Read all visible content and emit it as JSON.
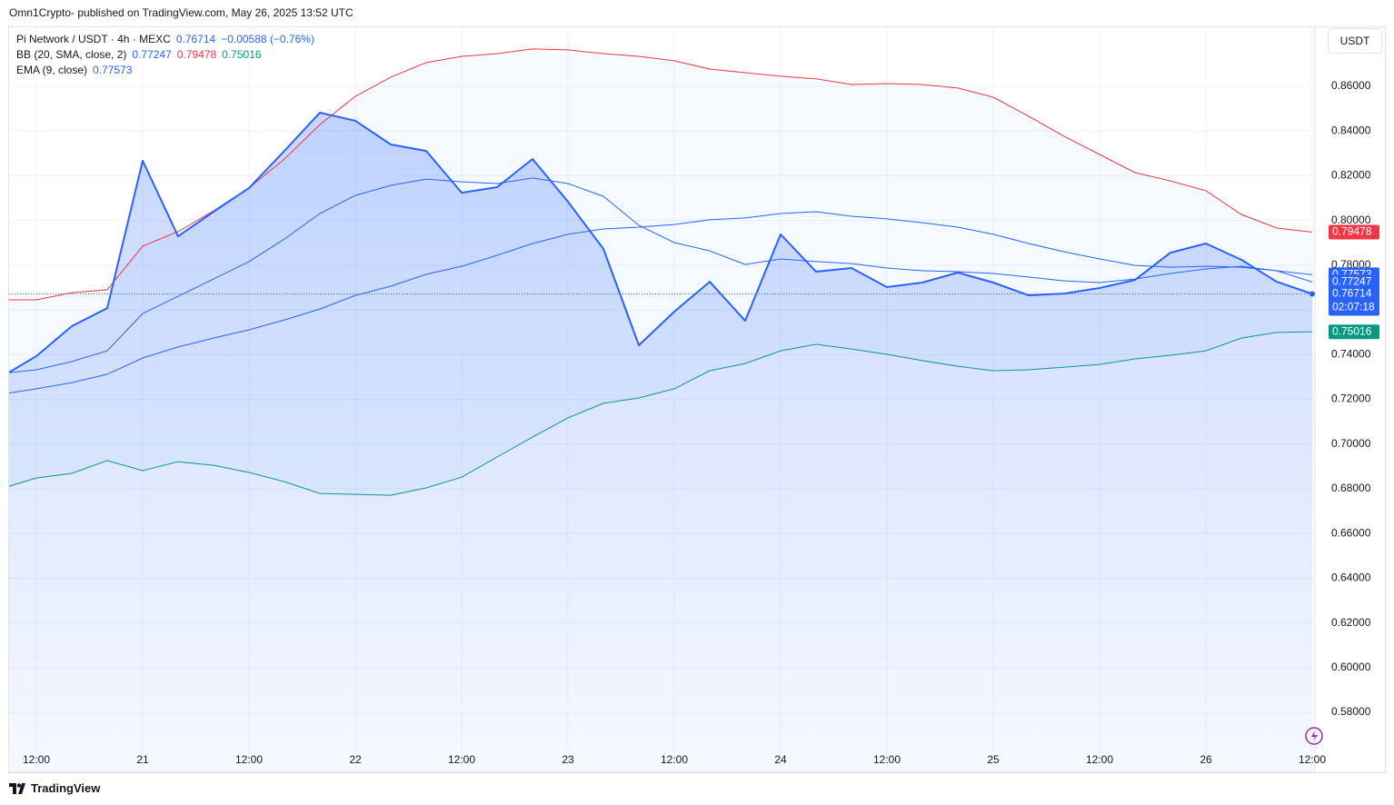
{
  "header": "Omn1Crypto- published on TradingView.com, May 26, 2025 13:52 UTC",
  "footer": "TradingView",
  "chart_data": {
    "type": "line",
    "unit": "USDT",
    "legend": [
      {
        "name": "Pi Network / USDT · 4h · MEXC",
        "change": "−0.00588 (−0.76%)"
      },
      {
        "name": "BB (20, SMA, close, 2)"
      },
      {
        "name": "EMA (9, close)"
      }
    ],
    "countdown": "02:07:18",
    "categories": [
      null,
      "12:00",
      null,
      null,
      "21",
      null,
      null,
      "12:00",
      null,
      null,
      "22",
      null,
      null,
      "12:00",
      null,
      null,
      "23",
      null,
      null,
      "12:00",
      null,
      null,
      "24",
      null,
      null,
      "12:00",
      null,
      null,
      "25",
      null,
      null,
      "12:00",
      null,
      null,
      "26",
      null,
      null,
      "12:00"
    ],
    "ylim": [
      0.5532,
      0.8864
    ],
    "yticks": [
      {
        "value": 0.58,
        "label": "0.58000"
      },
      {
        "value": 0.6,
        "label": "0.60000"
      },
      {
        "value": 0.62,
        "label": "0.62000"
      },
      {
        "value": 0.64,
        "label": "0.64000"
      },
      {
        "value": 0.66,
        "label": "0.66000"
      },
      {
        "value": 0.68,
        "label": "0.68000"
      },
      {
        "value": 0.7,
        "label": "0.70000"
      },
      {
        "value": 0.72,
        "label": "0.72000"
      },
      {
        "value": 0.74,
        "label": "0.74000"
      },
      {
        "value": 0.76,
        "label": "0.76000"
      },
      {
        "value": 0.78,
        "label": "0.78000"
      },
      {
        "value": 0.8,
        "label": "0.80000"
      },
      {
        "value": 0.82,
        "label": "0.82000"
      },
      {
        "value": 0.84,
        "label": "0.84000"
      },
      {
        "value": 0.86,
        "label": "0.86000"
      }
    ],
    "grid": true,
    "series": [
      {
        "color": "#2962ff",
        "values": [
          0.7299,
          0.7393,
          0.7527,
          0.7608,
          0.8267,
          0.7929,
          0.8039,
          0.8145,
          0.8311,
          0.8482,
          0.8446,
          0.834,
          0.8311,
          0.8124,
          0.8149,
          0.8275,
          0.8084,
          0.7873,
          0.7442,
          0.7592,
          0.7726,
          0.7551,
          0.7938,
          0.7771,
          0.7787,
          0.7702,
          0.7722,
          0.7767,
          0.7722,
          0.7665,
          0.7673,
          0.7698,
          0.7734,
          0.7856,
          0.7897,
          0.7824,
          0.7726,
          0.76714
        ]
      },
      {
        "color": "#2962ff",
        "values": [
          0.7316,
          0.7332,
          0.7369,
          0.7417,
          0.7584,
          0.7661,
          0.7738,
          0.7816,
          0.7917,
          0.8031,
          0.8112,
          0.8157,
          0.8185,
          0.8173,
          0.8165,
          0.819,
          0.8165,
          0.8108,
          0.7978,
          0.7901,
          0.7864,
          0.7803,
          0.7828,
          0.7816,
          0.7807,
          0.7787,
          0.7775,
          0.7771,
          0.7763,
          0.7747,
          0.773,
          0.7722,
          0.7738,
          0.7763,
          0.7783,
          0.7795,
          0.7775,
          0.77573
        ]
      },
      {
        "color": "#2962ff",
        "values": [
          0.7222,
          0.7247,
          0.7275,
          0.7312,
          0.7385,
          0.7434,
          0.7474,
          0.7511,
          0.7555,
          0.7604,
          0.7665,
          0.7706,
          0.7759,
          0.7795,
          0.7844,
          0.7897,
          0.7938,
          0.7962,
          0.797,
          0.7982,
          0.8003,
          0.8011,
          0.8031,
          0.8039,
          0.8019,
          0.8007,
          0.799,
          0.797,
          0.7938,
          0.7897,
          0.786,
          0.7828,
          0.7799,
          0.7791,
          0.7795,
          0.7791,
          0.7775,
          0.77247
        ]
      },
      {
        "color": "#f23645",
        "values": [
          0.7645,
          0.7645,
          0.7677,
          0.769,
          0.7885,
          0.795,
          0.8043,
          0.8145,
          0.8275,
          0.8429,
          0.8555,
          0.8641,
          0.8706,
          0.8734,
          0.8746,
          0.8767,
          0.8763,
          0.8746,
          0.8734,
          0.8714,
          0.8677,
          0.8661,
          0.8645,
          0.8633,
          0.8608,
          0.8612,
          0.8608,
          0.8592,
          0.8551,
          0.8466,
          0.8376,
          0.8295,
          0.8214,
          0.8177,
          0.8133,
          0.8027,
          0.7966,
          0.79478
        ]
      },
      {
        "color": "#089981",
        "values": [
          0.68,
          0.6848,
          0.6869,
          0.6926,
          0.6881,
          0.6921,
          0.6905,
          0.6873,
          0.6832,
          0.6779,
          0.6775,
          0.6771,
          0.6804,
          0.6852,
          0.6942,
          0.7031,
          0.7117,
          0.7182,
          0.7206,
          0.7247,
          0.7328,
          0.736,
          0.7417,
          0.7446,
          0.7425,
          0.7401,
          0.7373,
          0.7348,
          0.7328,
          0.7332,
          0.7344,
          0.7356,
          0.7381,
          0.7397,
          0.7417,
          0.7474,
          0.7499,
          0.75016
        ]
      }
    ]
  }
}
